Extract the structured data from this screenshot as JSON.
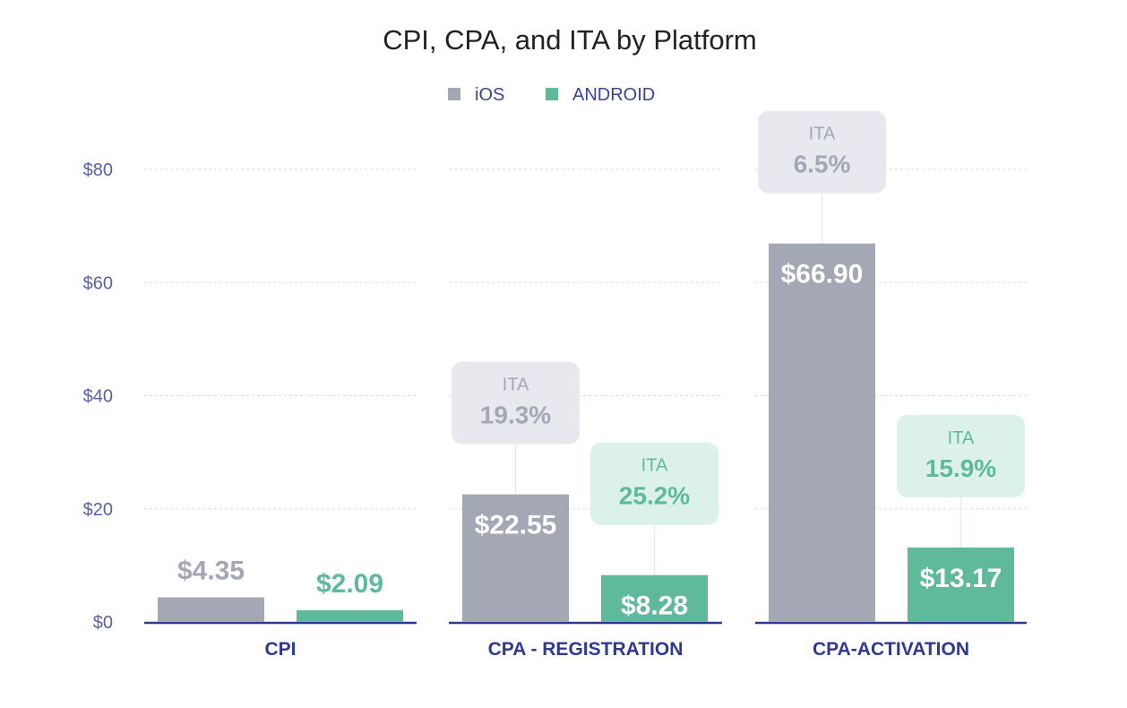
{
  "chart_data": {
    "type": "bar",
    "title": "CPI, CPA, and ITA by Platform",
    "categories": [
      "CPI",
      "CPA - REGISTRATION",
      "CPA-ACTIVATION"
    ],
    "series": [
      {
        "name": "iOS",
        "color": "#a4a7b4",
        "values": [
          4.35,
          22.55,
          66.9
        ],
        "labels": [
          "$4.35",
          "$22.55",
          "$66.90"
        ],
        "ita": [
          null,
          "19.3%",
          "6.5%"
        ]
      },
      {
        "name": "ANDROID",
        "color": "#5fba9b",
        "values": [
          2.09,
          8.28,
          13.17
        ],
        "labels": [
          "$2.09",
          "$8.28",
          "$13.17"
        ],
        "ita": [
          null,
          "25.2%",
          "15.9%"
        ]
      }
    ],
    "ita_label": "ITA",
    "yticks": [
      0,
      20,
      40,
      60,
      80
    ],
    "ytick_labels": [
      "$0",
      "$20",
      "$40",
      "$60",
      "$80"
    ],
    "ylim": [
      0,
      80
    ],
    "grid": true,
    "legend": "top-center"
  }
}
